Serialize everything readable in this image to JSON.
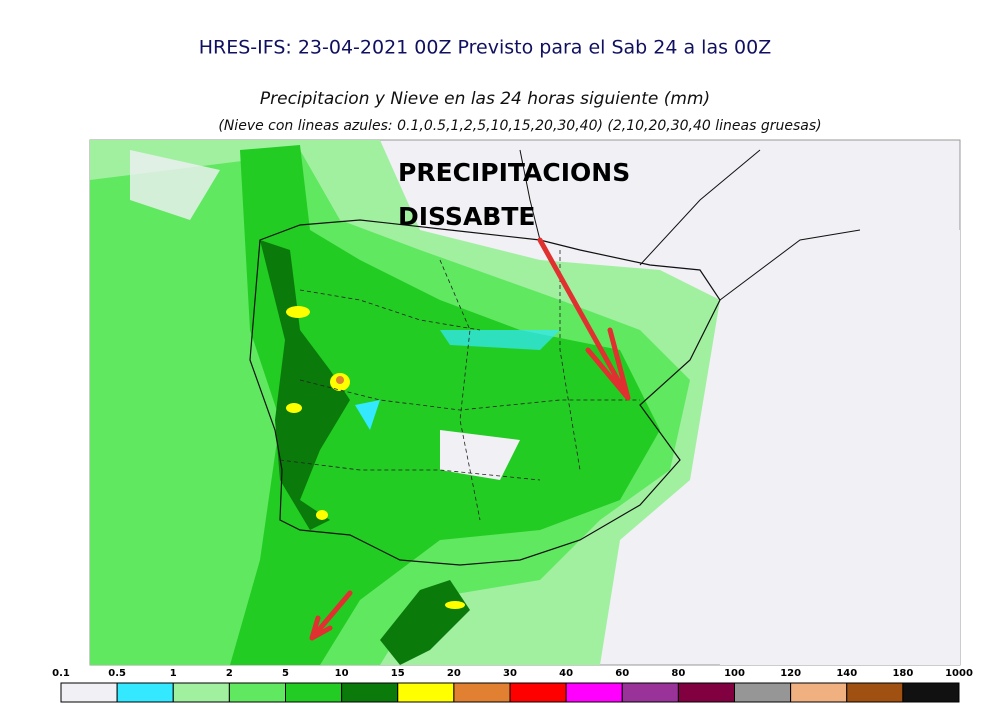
{
  "header": {
    "title": "HRES-IFS: 23-04-2021 00Z Previsto para el Sab 24 a las 00Z",
    "subtitle": "Precipitacion y Nieve en las 24 horas siguiente (mm)",
    "note": "(Nieve con lineas azules: 0.1,0.5,1,2,5,10,15,20,30,40)  (2,10,20,30,40 lineas gruesas)"
  },
  "annotation": [
    "PRECIPITACIONS",
    "DISSABTE"
  ],
  "colorbar": {
    "ticks": [
      0.1,
      0.5,
      1,
      2,
      5,
      10,
      15,
      20,
      30,
      40,
      60,
      80,
      100,
      120,
      140,
      180,
      1000
    ],
    "colors": [
      "#f0f0f5",
      "#33e8ff",
      "#a0f0a0",
      "#60e860",
      "#22cc22",
      "#0a7a0a",
      "#ffff00",
      "#e08030",
      "#ff0000",
      "#ff00ff",
      "#993399",
      "#800040",
      "#969696",
      "#f0b080",
      "#a05010",
      "#111111"
    ]
  }
}
